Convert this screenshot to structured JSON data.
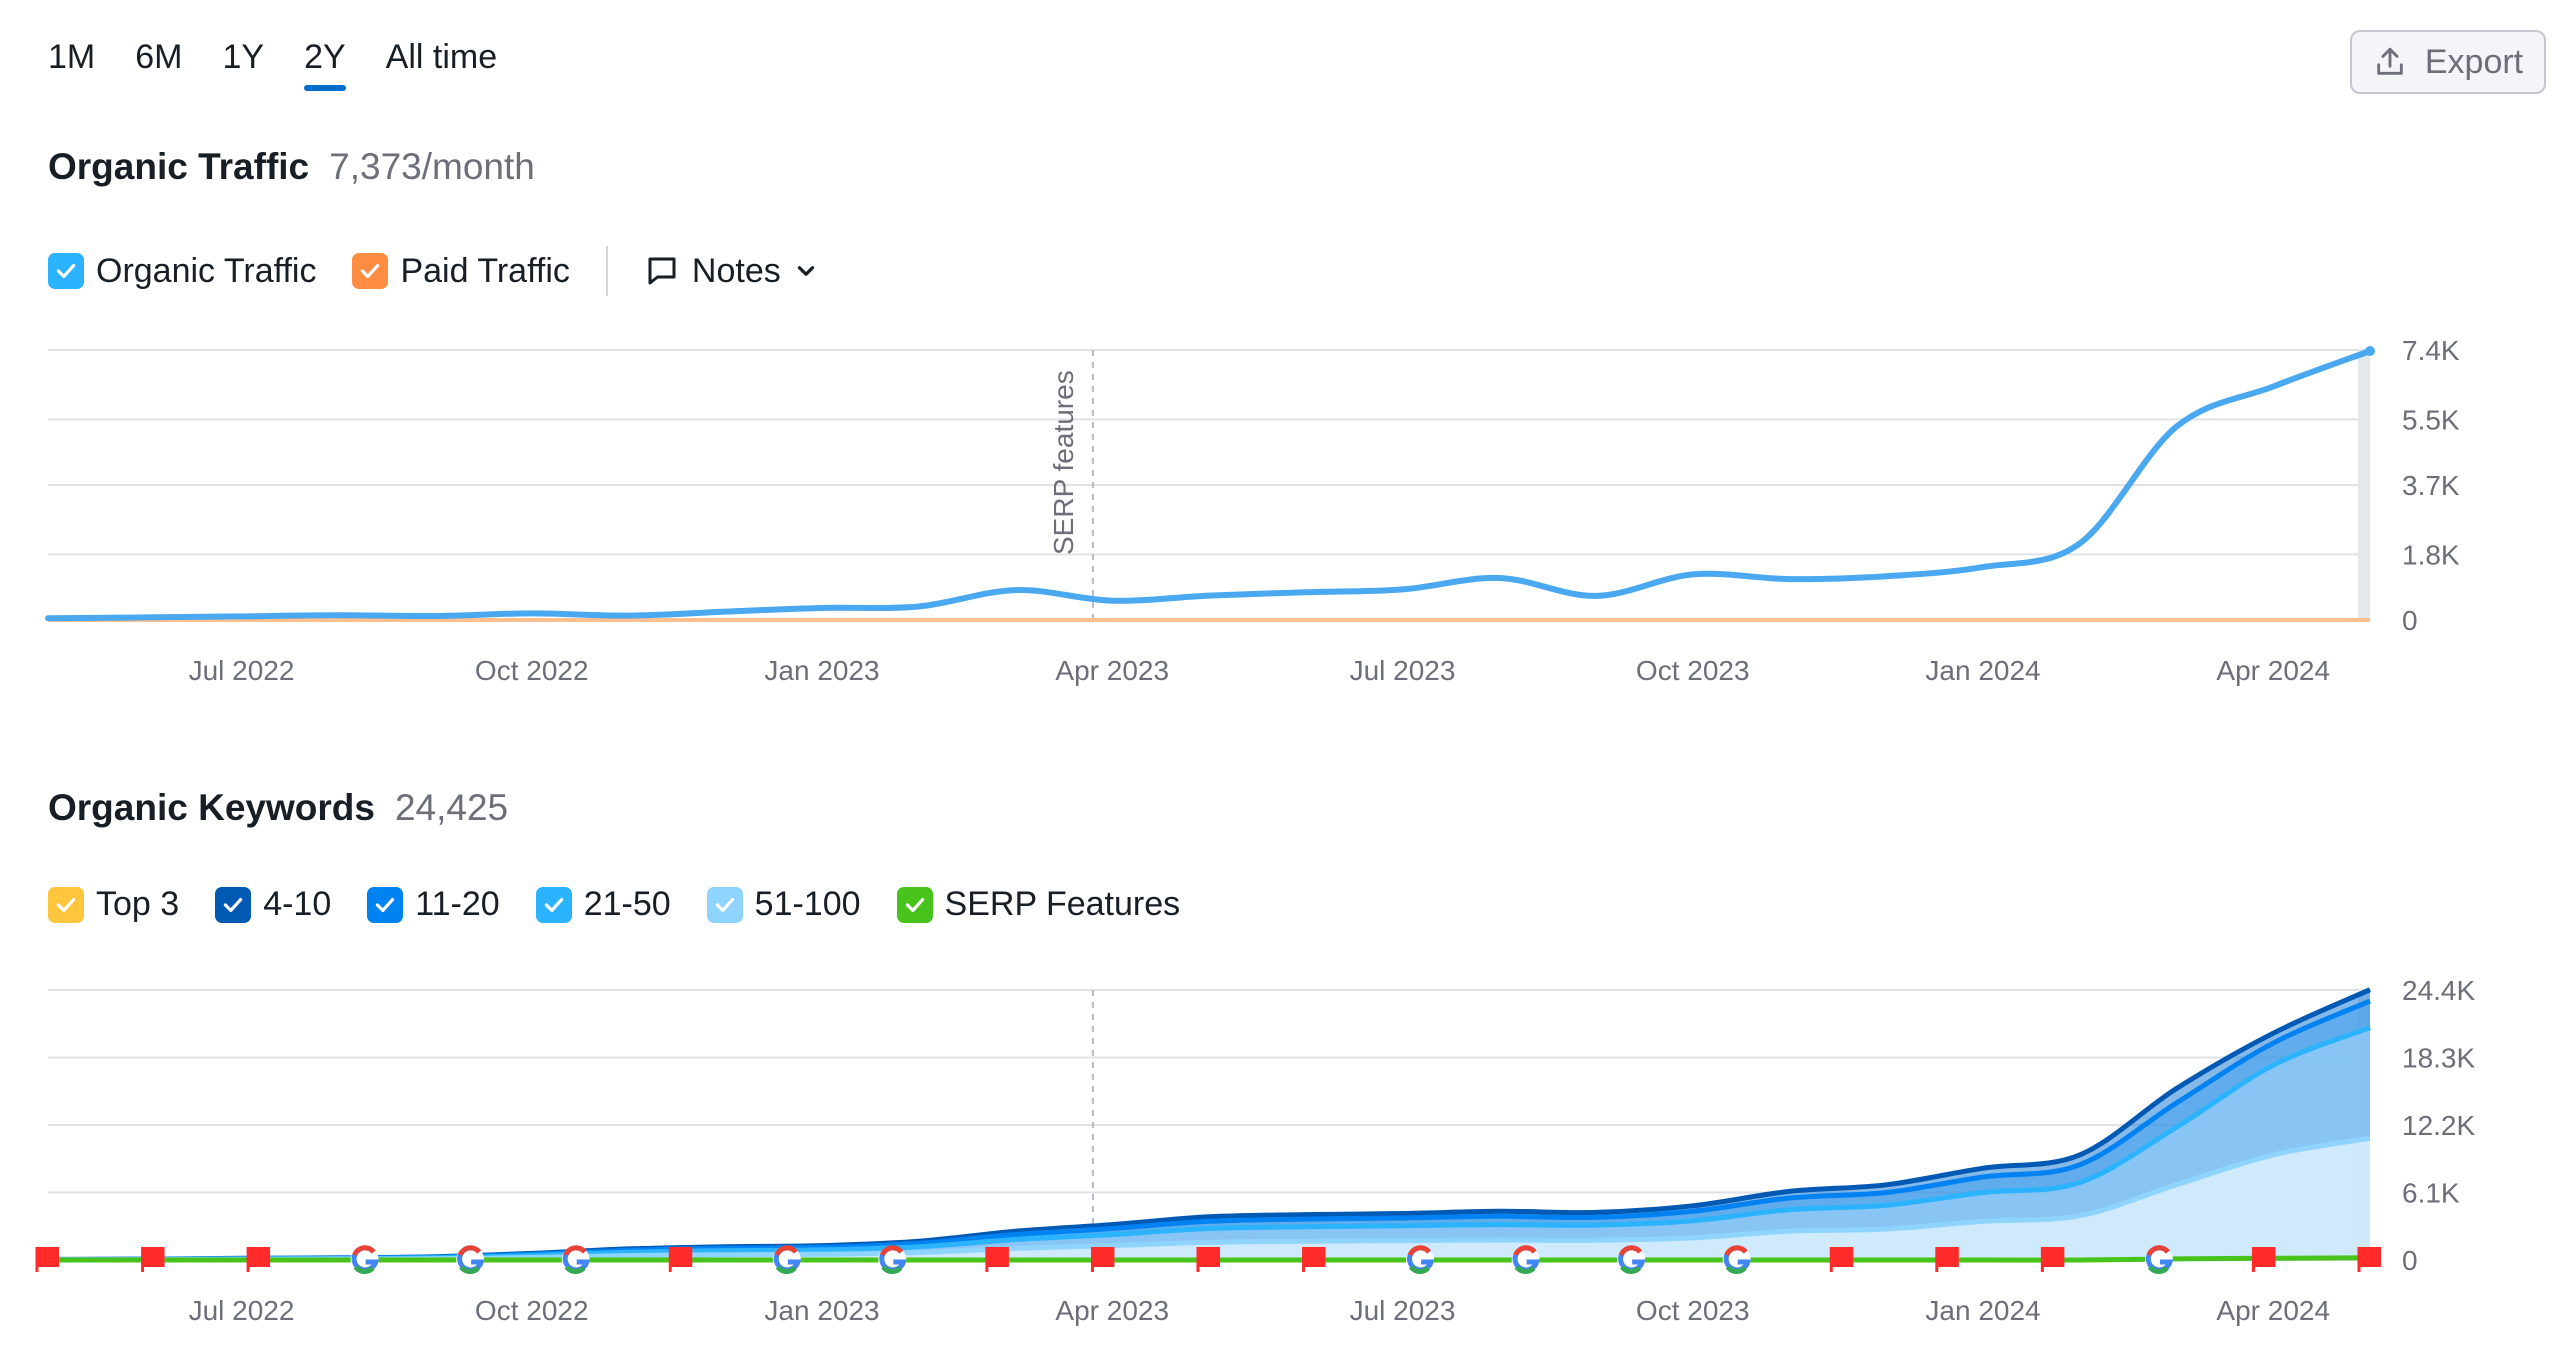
{
  "periods": [
    "1M",
    "6M",
    "1Y",
    "2Y",
    "All time"
  ],
  "active_period": "2Y",
  "export_label": "Export",
  "traffic": {
    "title": "Organic Traffic",
    "value": "7,373/month",
    "legend": [
      {
        "label": "Organic Traffic",
        "color": "#2bb3ff"
      },
      {
        "label": "Paid Traffic",
        "color": "#ff8c43"
      }
    ],
    "notes_label": "Notes"
  },
  "keywords": {
    "title": "Organic Keywords",
    "value": "24,425",
    "legend": [
      {
        "label": "Top 3",
        "color": "#ffc53d"
      },
      {
        "label": "4-10",
        "color": "#0059b3"
      },
      {
        "label": "11-20",
        "color": "#0082f3"
      },
      {
        "label": "21-50",
        "color": "#2bb3ff"
      },
      {
        "label": "51-100",
        "color": "#8fd4ff"
      },
      {
        "label": "SERP Features",
        "color": "#47c31b"
      }
    ]
  },
  "chart_data": [
    {
      "type": "line",
      "x": [
        "2022-05",
        "2022-06",
        "2022-07",
        "2022-08",
        "2022-09",
        "2022-10",
        "2022-11",
        "2022-12",
        "2023-01",
        "2023-02",
        "2023-03",
        "2023-04",
        "2023-05",
        "2023-06",
        "2023-07",
        "2023-08",
        "2023-09",
        "2023-10",
        "2023-11",
        "2023-12",
        "2024-01",
        "2024-02",
        "2024-03",
        "2024-04",
        "2024-05"
      ],
      "x_tick_labels": [
        "Jul 2022",
        "Oct 2022",
        "Jan 2023",
        "Apr 2023",
        "Jul 2023",
        "Oct 2023",
        "Jan 2024",
        "Apr 2024"
      ],
      "x_tick_positions": [
        "2022-07",
        "2022-10",
        "2023-01",
        "2023-04",
        "2023-07",
        "2023-10",
        "2024-01",
        "2024-04"
      ],
      "y_ticks": [
        0,
        1800,
        3700,
        5500,
        7400
      ],
      "y_tick_labels": [
        "0",
        "1.8K",
        "3.7K",
        "5.5K",
        "7.4K"
      ],
      "ylim": [
        0,
        7400
      ],
      "annotation": {
        "x": "2023-03-25",
        "label": "SERP features"
      },
      "series": [
        {
          "name": "Organic Traffic",
          "color": "#4aa8f0",
          "values": [
            50,
            70,
            100,
            130,
            110,
            180,
            120,
            230,
            330,
            370,
            820,
            530,
            670,
            760,
            840,
            1150,
            660,
            1250,
            1120,
            1200,
            1450,
            2100,
            5300,
            6400,
            7373
          ]
        },
        {
          "name": "Paid Traffic",
          "color": "#ffbf8f",
          "values": [
            0,
            0,
            0,
            0,
            0,
            0,
            0,
            0,
            0,
            0,
            0,
            0,
            0,
            0,
            0,
            0,
            0,
            0,
            0,
            0,
            0,
            0,
            0,
            0,
            0
          ]
        }
      ]
    },
    {
      "type": "area",
      "x": [
        "2022-05",
        "2022-06",
        "2022-07",
        "2022-08",
        "2022-09",
        "2022-10",
        "2022-11",
        "2022-12",
        "2023-01",
        "2023-02",
        "2023-03",
        "2023-04",
        "2023-05",
        "2023-06",
        "2023-07",
        "2023-08",
        "2023-09",
        "2023-10",
        "2023-11",
        "2023-12",
        "2024-01",
        "2024-02",
        "2024-03",
        "2024-04",
        "2024-05"
      ],
      "x_tick_labels": [
        "Jul 2022",
        "Oct 2022",
        "Jan 2023",
        "Apr 2023",
        "Jul 2023",
        "Oct 2023",
        "Jan 2024",
        "Apr 2024"
      ],
      "x_tick_positions": [
        "2022-07",
        "2022-10",
        "2023-01",
        "2023-04",
        "2023-07",
        "2023-10",
        "2024-01",
        "2024-04"
      ],
      "y_ticks": [
        0,
        6100,
        12200,
        18300,
        24400
      ],
      "y_tick_labels": [
        "0",
        "6.1K",
        "12.2K",
        "18.3K",
        "24.4K"
      ],
      "ylim": [
        0,
        24400
      ],
      "annotation": {
        "x": "2023-03-25"
      },
      "series": [
        {
          "name": "Top 3",
          "color": "#ffc53d",
          "values": [
            0,
            0,
            0,
            0,
            0,
            0,
            0,
            0,
            0,
            0,
            0,
            0,
            0,
            0,
            0,
            0,
            0,
            0,
            0,
            0,
            0,
            0,
            0,
            0,
            0
          ]
        },
        {
          "name": "4-10",
          "color": "#0059b3",
          "values": [
            50,
            80,
            150,
            200,
            300,
            600,
            1000,
            1200,
            1300,
            1700,
            2600,
            3200,
            3900,
            4100,
            4200,
            4400,
            4300,
            4900,
            6200,
            6800,
            8300,
            9500,
            15500,
            20500,
            24425
          ]
        },
        {
          "name": "11-20",
          "color": "#0082f3",
          "values": [
            40,
            70,
            130,
            180,
            260,
            520,
            880,
            1060,
            1150,
            1500,
            2300,
            2850,
            3500,
            3700,
            3800,
            3950,
            3850,
            4400,
            5600,
            6100,
            7500,
            8600,
            14200,
            19600,
            23400
          ]
        },
        {
          "name": "21-50",
          "color": "#2bb3ff",
          "values": [
            30,
            55,
            100,
            140,
            200,
            410,
            700,
            850,
            920,
            1200,
            1850,
            2300,
            2850,
            3000,
            3100,
            3200,
            3150,
            3550,
            4550,
            4950,
            6100,
            7000,
            12000,
            17600,
            21000
          ]
        },
        {
          "name": "51-100",
          "color": "#8fd4ff",
          "values": [
            15,
            30,
            55,
            80,
            110,
            230,
            400,
            480,
            520,
            680,
            1050,
            1300,
            1600,
            1700,
            1750,
            1800,
            1780,
            2000,
            2600,
            2800,
            3500,
            4000,
            6800,
            9500,
            11000
          ]
        },
        {
          "name": "SERP Features",
          "color": "#47c31b",
          "values": [
            0,
            0,
            0,
            0,
            0,
            0,
            0,
            0,
            0,
            0,
            0,
            0,
            0,
            0,
            0,
            0,
            0,
            0,
            0,
            0,
            0,
            0,
            100,
            150,
            200
          ]
        }
      ],
      "event_markers": [
        "flag",
        "flag",
        "flag",
        "google",
        "google",
        "google",
        "flag",
        "google",
        "google",
        "flag",
        "flag",
        "flag",
        "flag",
        "google",
        "google",
        "google",
        "google",
        "flag",
        "flag",
        "flag",
        "google",
        "flag",
        "flag"
      ]
    }
  ]
}
